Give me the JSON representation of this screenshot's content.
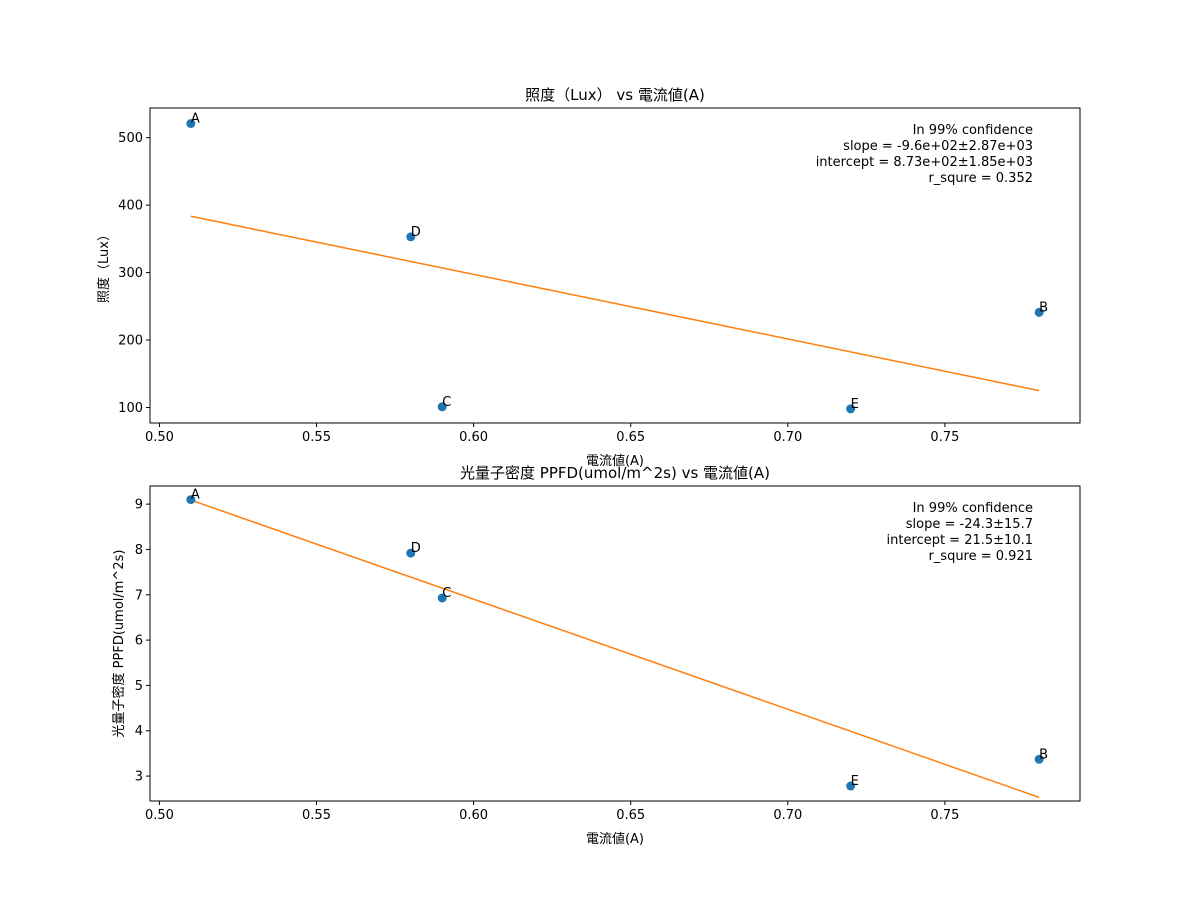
{
  "chart_data": [
    {
      "type": "scatter",
      "title": "照度（Lux） vs 電流値(A)",
      "xlabel": "電流値(A)",
      "ylabel": "照度（Lux）",
      "xlim": [
        0.497,
        0.793
      ],
      "ylim": [
        77,
        544
      ],
      "xticks": [
        0.5,
        0.55,
        0.6,
        0.65,
        0.7,
        0.75
      ],
      "xtick_labels": [
        "0.50",
        "0.55",
        "0.60",
        "0.65",
        "0.70",
        "0.75"
      ],
      "yticks": [
        100,
        200,
        300,
        400,
        500
      ],
      "ytick_labels": [
        "100",
        "200",
        "300",
        "400",
        "500"
      ],
      "grid": false,
      "points": [
        {
          "label": "A",
          "x": 0.51,
          "y": 521
        },
        {
          "label": "D",
          "x": 0.58,
          "y": 353
        },
        {
          "label": "C",
          "x": 0.59,
          "y": 101
        },
        {
          "label": "E",
          "x": 0.72,
          "y": 98
        },
        {
          "label": "B",
          "x": 0.78,
          "y": 241
        }
      ],
      "fit_line": {
        "x": [
          0.51,
          0.78
        ],
        "y": [
          383.5,
          125.0
        ]
      },
      "annotation": [
        "In 99% confidence",
        "slope = -9.6e+02±2.87e+03",
        "intercept = 8.73e+02±1.85e+03",
        "r_squre = 0.352"
      ],
      "colors": {
        "points": "#1f77b4",
        "fit_line": "#ff7f0e"
      }
    },
    {
      "type": "scatter",
      "title": "光量子密度 PPFD(umol/m^2s) vs 電流値(A)",
      "xlabel": "電流値(A)",
      "ylabel": "光量子密度 PPFD(umol/m^2s)",
      "xlim": [
        0.497,
        0.793
      ],
      "ylim": [
        2.45,
        9.4
      ],
      "xticks": [
        0.5,
        0.55,
        0.6,
        0.65,
        0.7,
        0.75
      ],
      "xtick_labels": [
        "0.50",
        "0.55",
        "0.60",
        "0.65",
        "0.70",
        "0.75"
      ],
      "yticks": [
        3,
        4,
        5,
        6,
        7,
        8,
        9
      ],
      "ytick_labels": [
        "3",
        "4",
        "5",
        "6",
        "7",
        "8",
        "9"
      ],
      "grid": false,
      "points": [
        {
          "label": "A",
          "x": 0.51,
          "y": 9.1
        },
        {
          "label": "D",
          "x": 0.58,
          "y": 7.92
        },
        {
          "label": "C",
          "x": 0.59,
          "y": 6.93
        },
        {
          "label": "E",
          "x": 0.72,
          "y": 2.78
        },
        {
          "label": "B",
          "x": 0.78,
          "y": 3.37
        }
      ],
      "fit_line": {
        "x": [
          0.51,
          0.78
        ],
        "y": [
          9.09,
          2.53
        ]
      },
      "annotation": [
        "In 99% confidence",
        "slope = -24.3±15.7",
        "intercept = 21.5±10.1",
        "r_squre = 0.921"
      ],
      "colors": {
        "points": "#1f77b4",
        "fit_line": "#ff7f0e"
      }
    }
  ]
}
